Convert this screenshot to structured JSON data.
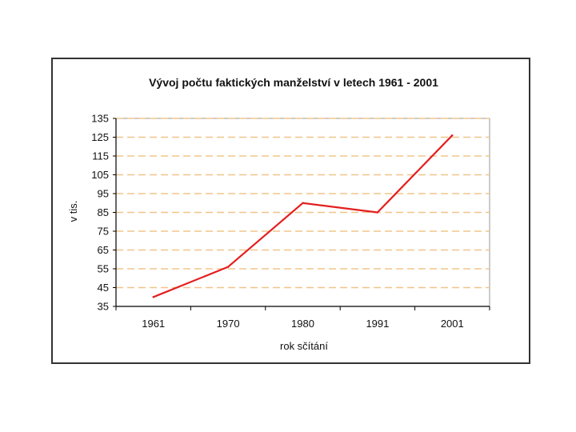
{
  "chart_data": {
    "type": "line",
    "title": "Vývoj počtu faktických manželství v letech 1961 - 2001",
    "xlabel": "rok sčítání",
    "ylabel": "v tis.",
    "categories": [
      "1961",
      "1970",
      "1980",
      "1991",
      "2001"
    ],
    "series": [
      {
        "values": [
          40,
          56,
          90,
          85,
          126
        ]
      }
    ],
    "ylim": [
      35,
      135
    ],
    "yticks": [
      35,
      45,
      55,
      65,
      75,
      85,
      95,
      105,
      115,
      125,
      135
    ],
    "grid": true,
    "legend": "none",
    "colors": {
      "line": "#e41e1e",
      "grid": "#f0c58a",
      "axis": "#000000",
      "plot_border": "#999999"
    }
  }
}
